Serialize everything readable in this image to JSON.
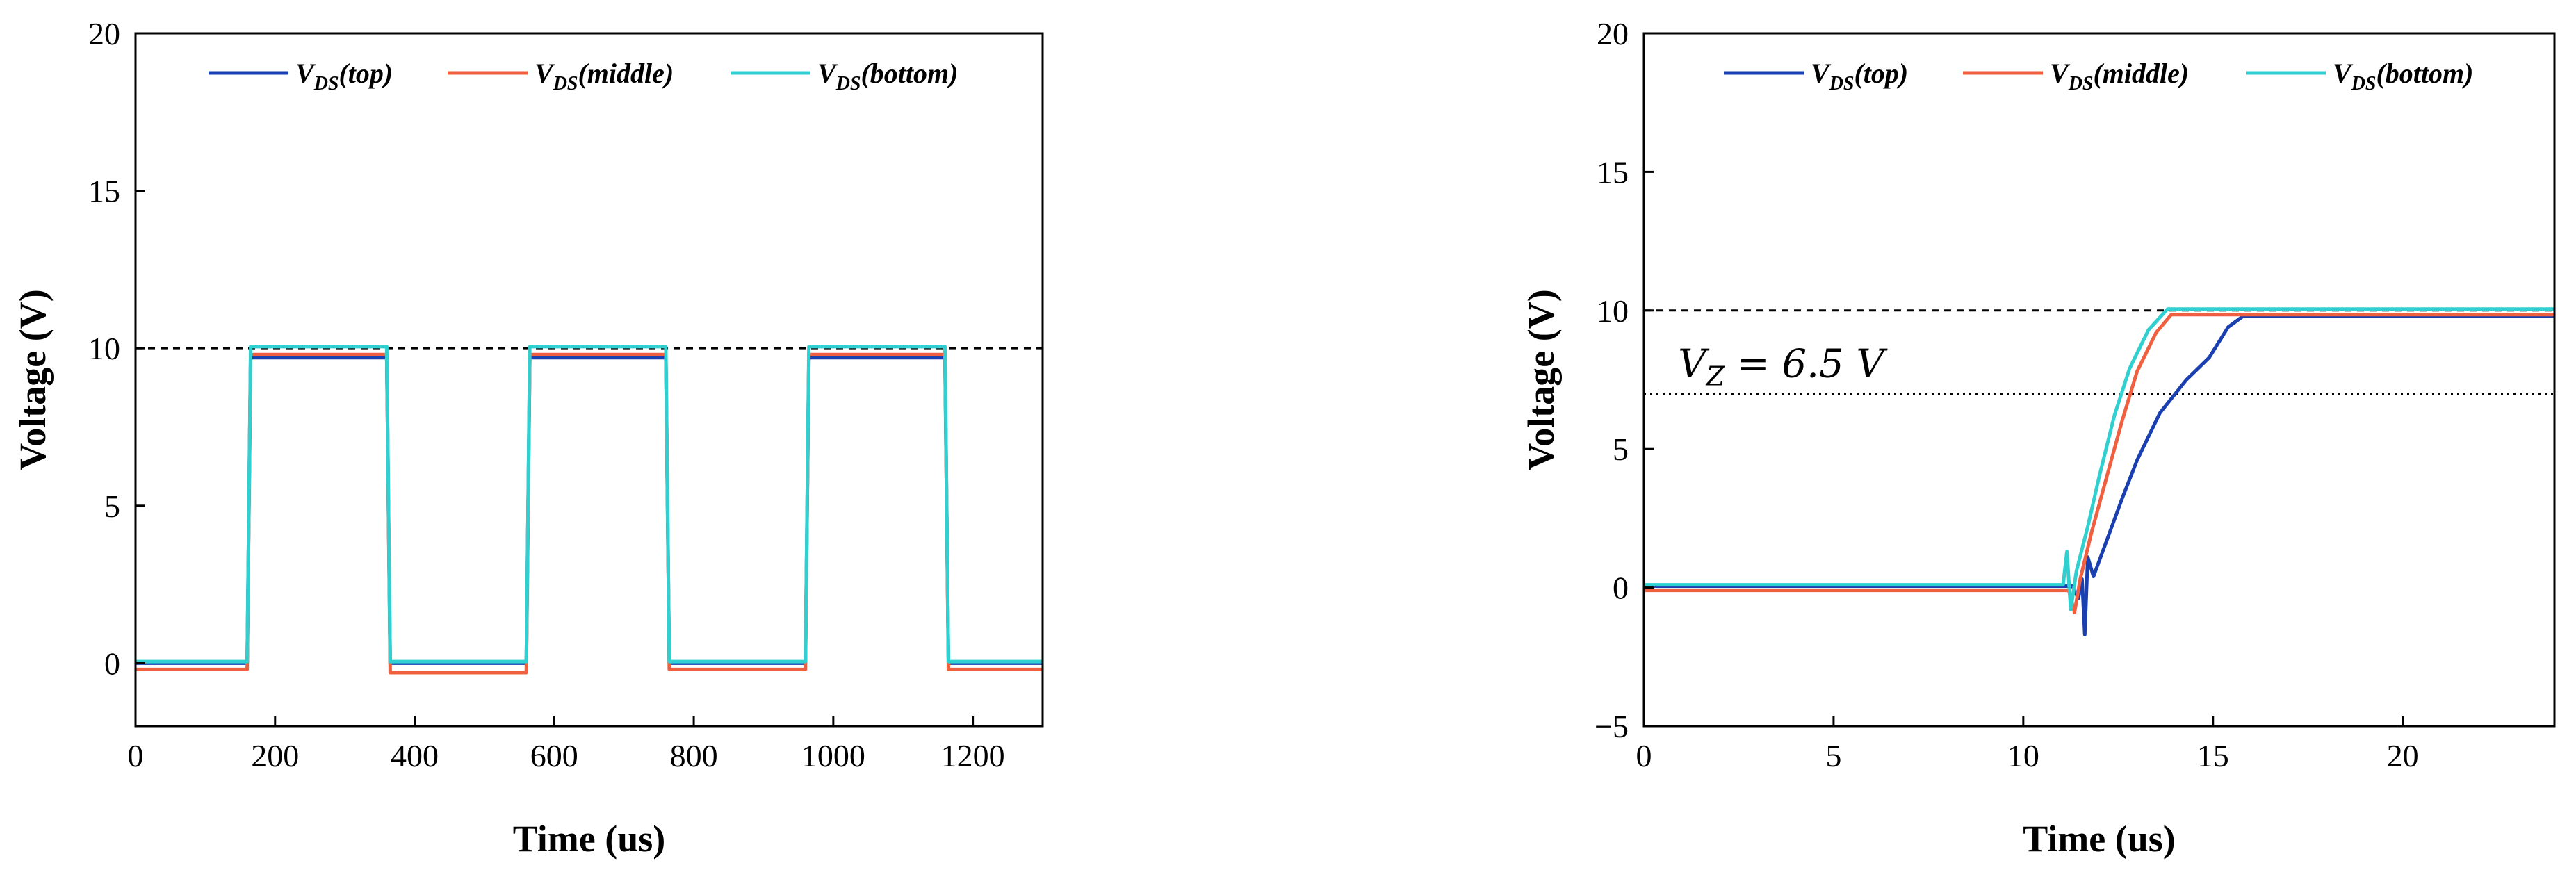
{
  "chart_data": [
    {
      "type": "line",
      "xlabel": "Time (us)",
      "ylabel": "Voltage (V)",
      "xlim": [
        0,
        1300
      ],
      "ylim": [
        -2,
        20
      ],
      "xticks": [
        0,
        200,
        400,
        600,
        800,
        1000,
        1200
      ],
      "yticks": [
        0,
        5,
        10,
        15,
        20
      ],
      "grid": false,
      "legend_position": "top",
      "reference_lines": [
        {
          "y": 10,
          "style": "dashed"
        }
      ],
      "annotations": [],
      "series": [
        {
          "name": "V_DS(top)",
          "label_main": "V",
          "label_sub": "DS",
          "label_suffix": "(top)",
          "color": "#1a3fb0",
          "x": [
            0,
            160,
            165,
            360,
            365,
            560,
            565,
            760,
            765,
            960,
            965,
            1160,
            1165,
            1300
          ],
          "y": [
            0.0,
            0.0,
            9.7,
            9.7,
            0.0,
            0.0,
            9.7,
            9.7,
            0.0,
            0.0,
            9.7,
            9.7,
            0.0,
            0.0
          ]
        },
        {
          "name": "V_DS(middle)",
          "label_main": "V",
          "label_sub": "DS",
          "label_suffix": "(middle)",
          "color": "#f06040",
          "x": [
            0,
            160,
            165,
            360,
            365,
            560,
            565,
            760,
            765,
            960,
            965,
            1160,
            1165,
            1300
          ],
          "y": [
            -0.2,
            -0.2,
            9.8,
            9.8,
            -0.3,
            -0.3,
            9.8,
            9.8,
            -0.2,
            -0.2,
            9.8,
            9.8,
            -0.2,
            -0.2
          ]
        },
        {
          "name": "V_DS(bottom)",
          "label_main": "V",
          "label_sub": "DS",
          "label_suffix": "(bottom)",
          "color": "#30d0d0",
          "x": [
            0,
            160,
            165,
            360,
            365,
            560,
            565,
            760,
            765,
            960,
            965,
            1160,
            1165,
            1300
          ],
          "y": [
            0.05,
            0.05,
            10.05,
            10.05,
            0.05,
            0.05,
            10.05,
            10.05,
            0.05,
            0.05,
            10.05,
            10.05,
            0.05,
            0.05
          ]
        }
      ]
    },
    {
      "type": "line",
      "xlabel": "Time (us)",
      "ylabel": "Voltage (V)",
      "xlim": [
        0,
        24
      ],
      "ylim": [
        -5,
        20
      ],
      "xticks": [
        0,
        5,
        10,
        15,
        20
      ],
      "yticks": [
        -5,
        0,
        5,
        10,
        15,
        20
      ],
      "grid": false,
      "legend_position": "top",
      "reference_lines": [
        {
          "y": 10,
          "style": "dashed"
        },
        {
          "y": 7,
          "style": "dotted"
        }
      ],
      "annotations": [
        {
          "text": "V",
          "sub": "Z",
          "rest": " = 6.5 V",
          "x": 0.9,
          "y": 7.6
        }
      ],
      "series": [
        {
          "name": "V_DS(top)",
          "label_main": "V",
          "label_sub": "DS",
          "label_suffix": "(top)",
          "color": "#1a3fb0",
          "x": [
            0,
            11.3,
            11.45,
            11.55,
            11.62,
            11.7,
            11.85,
            12.2,
            12.6,
            13.0,
            13.6,
            14.3,
            14.9,
            15.4,
            15.8,
            24
          ],
          "y": [
            0.05,
            0.05,
            -0.4,
            0.3,
            -1.7,
            1.1,
            0.4,
            1.7,
            3.2,
            4.6,
            6.3,
            7.5,
            8.3,
            9.4,
            9.8,
            9.8
          ]
        },
        {
          "name": "V_DS(middle)",
          "label_main": "V",
          "label_sub": "DS",
          "label_suffix": "(middle)",
          "color": "#f06040",
          "x": [
            0,
            11.2,
            11.35,
            11.5,
            11.8,
            12.2,
            12.6,
            13.0,
            13.5,
            13.9,
            24
          ],
          "y": [
            -0.1,
            -0.1,
            -0.9,
            0.3,
            2.0,
            4.0,
            6.0,
            7.8,
            9.2,
            9.85,
            9.85
          ]
        },
        {
          "name": "V_DS(bottom)",
          "label_main": "V",
          "label_sub": "DS",
          "label_suffix": "(bottom)",
          "color": "#30d0d0",
          "x": [
            0,
            11.05,
            11.15,
            11.25,
            11.4,
            11.7,
            12.0,
            12.4,
            12.8,
            13.3,
            13.8,
            24
          ],
          "y": [
            0.1,
            0.1,
            1.3,
            -0.8,
            0.6,
            2.2,
            4.0,
            6.2,
            7.9,
            9.3,
            10.05,
            10.05
          ]
        }
      ]
    }
  ]
}
